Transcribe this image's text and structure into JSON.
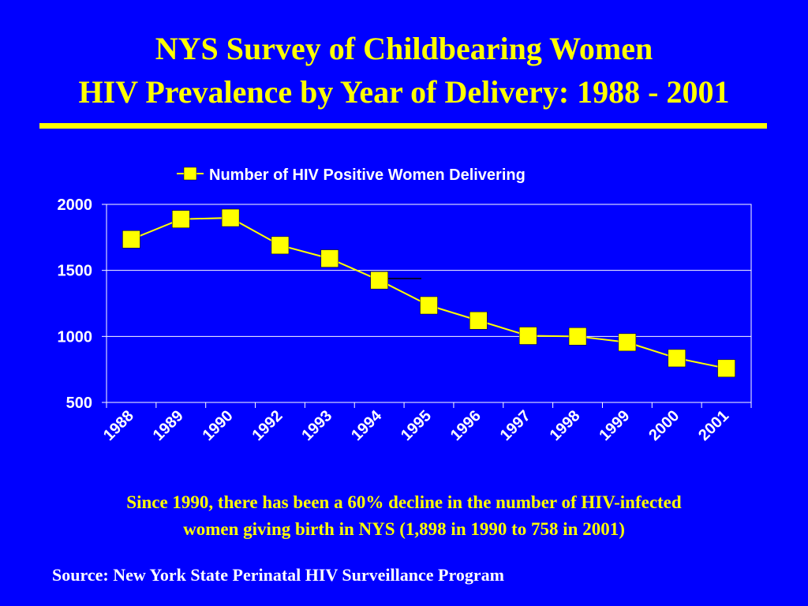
{
  "slide": {
    "title_line1": "NYS Survey of Childbearing Women",
    "title_line2": "HIV Prevalence by Year of Delivery: 1988 - 2001",
    "note_line1": "Since 1990,  there has been a 60% decline in the number of HIV-infected",
    "note_line2": "women giving birth in NYS (1,898 in 1990 to 758 in 2001)",
    "source": "Source: New York State Perinatal HIV Surveillance Program"
  },
  "colors": {
    "background": "#0000FF",
    "title": "#FFFF00",
    "series": "#FFFF00",
    "axis": "#FFFFFF"
  },
  "chart_data": {
    "type": "line",
    "categories": [
      "1988",
      "1989",
      "1990",
      "1992",
      "1993",
      "1994",
      "1995",
      "1996",
      "1997",
      "1998",
      "1999",
      "2000",
      "2001"
    ],
    "series": [
      {
        "name": "Number of HIV Positive Women Delivering",
        "values": [
          1735,
          1888,
          1898,
          1690,
          1590,
          1425,
          1235,
          1120,
          1005,
          1000,
          955,
          835,
          758
        ]
      }
    ],
    "ylim": [
      500,
      2000
    ],
    "yticks": [
      500,
      1000,
      1500,
      2000
    ],
    "grid": true,
    "legend_position": "top-center",
    "markers": "square"
  }
}
